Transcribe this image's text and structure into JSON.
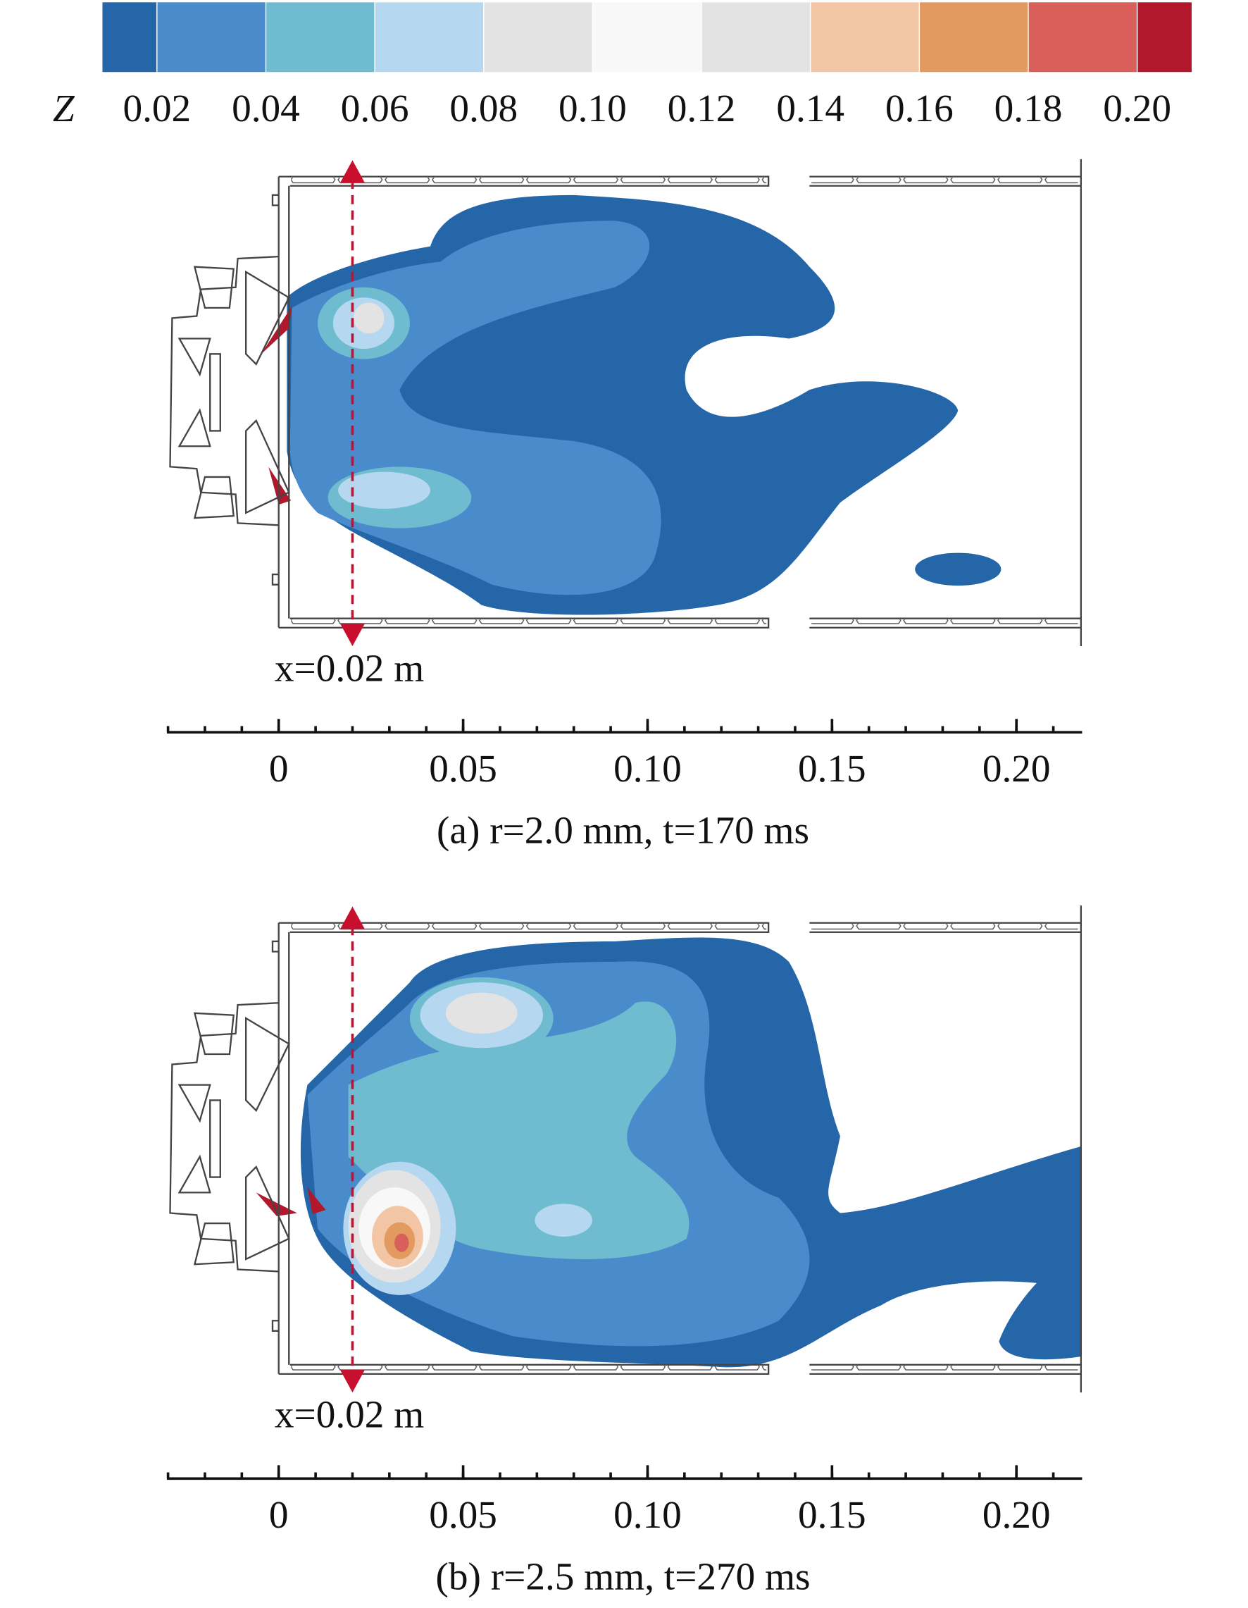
{
  "chart_data": [
    {
      "type": "colorbar",
      "label": "Z",
      "colors": [
        "#2566a8",
        "#4a8ccb",
        "#6fbcd0",
        "#b5d8f0",
        "#e3e3e3",
        "#f8f8f8",
        "#e3e3e3",
        "#f2c6a4",
        "#e39a60",
        "#d9605a",
        "#b2182b"
      ],
      "clim": [
        0.01,
        0.21
      ],
      "ticks": [
        0.02,
        0.04,
        0.06,
        0.08,
        {
          "value": 0.1,
          "label": "0.10"
        },
        0.12,
        0.14,
        0.16,
        0.18,
        {
          "value": 0.2,
          "label": "0.20"
        }
      ]
    },
    {
      "type": "contour",
      "caption": "(a) r=2.0 mm, t=170 ms",
      "xlim": [
        -0.0303,
        0.2178
      ],
      "xticks": [
        0,
        0.05,
        {
          "value": 0.1,
          "label": "0.10"
        },
        0.15,
        {
          "value": 0.2,
          "label": "0.20"
        }
      ],
      "annotation": {
        "x": 0.02,
        "label": "x=0.02 m"
      }
    },
    {
      "type": "contour",
      "caption": "(b) r=2.5 mm, t=270 ms",
      "xlim": [
        -0.0303,
        0.2178
      ],
      "xticks": [
        0,
        0.05,
        {
          "value": 0.1,
          "label": "0.10"
        },
        0.15,
        {
          "value": 0.2,
          "label": "0.20"
        }
      ],
      "annotation": {
        "x": 0.02,
        "label": "x=0.02 m"
      }
    }
  ]
}
